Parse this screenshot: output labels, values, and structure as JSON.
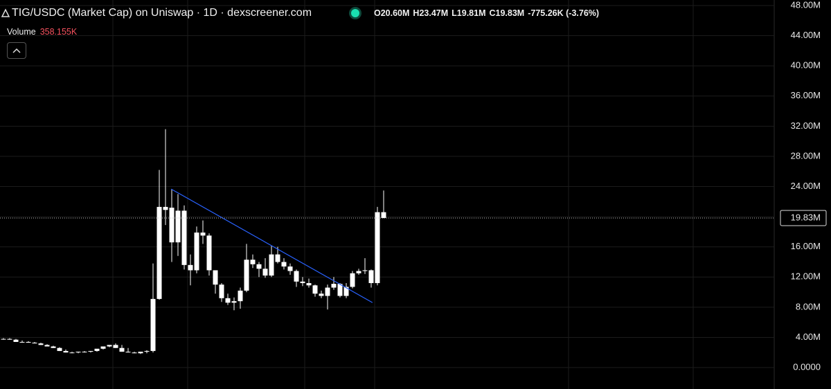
{
  "header": {
    "title": "TIG/USDC (Market Cap) on Uniswap · 1D · dexscreener.com",
    "readout": [
      "O20.60M",
      "H23.47M",
      "L19.81M",
      "C19.83M",
      "-775.26K (-3.76%)"
    ],
    "volume_label": "Volume",
    "volume_value": "358.155K"
  },
  "chart_data": {
    "type": "candlestick",
    "color": "#ffffff",
    "open": [
      3.8,
      3.8,
      3.7,
      3.4,
      3.4,
      3.3,
      3.2,
      3.0,
      2.8,
      2.6,
      2.2,
      2.0,
      2.0,
      2.1,
      2.1,
      2.2,
      2.5,
      2.8,
      3.0,
      2.6,
      2.1,
      2.0,
      1.9,
      2.1,
      2.2,
      9.1,
      21.3,
      21.2,
      16.6,
      20.8,
      13.6,
      12.9,
      17.9,
      17.5,
      12.9,
      11.0,
      9.2,
      8.6,
      8.8,
      10.2,
      14.3,
      13.7,
      13.1,
      12.2,
      15.0,
      14.0,
      13.4,
      12.8,
      11.4,
      11.2,
      10.9,
      9.8,
      9.5,
      10.6,
      11.1,
      9.5,
      10.7,
      12.5,
      12.8,
      12.9,
      11.2,
      20.6
    ],
    "high": [
      3.9,
      3.9,
      3.8,
      3.6,
      3.5,
      3.4,
      3.3,
      3.1,
      2.9,
      2.7,
      2.4,
      2.1,
      2.1,
      2.2,
      2.2,
      2.4,
      2.7,
      3.0,
      3.2,
      3.0,
      2.6,
      2.1,
      2.0,
      2.3,
      13.8,
      26.2,
      31.6,
      23.6,
      23.0,
      21.5,
      15.0,
      18.7,
      19.5,
      17.8,
      12.9,
      11.2,
      9.8,
      9.3,
      10.6,
      16.4,
      15.0,
      14.0,
      14.5,
      16.2,
      16.0,
      14.5,
      13.8,
      13.0,
      12.0,
      11.8,
      11.0,
      10.2,
      11.0,
      12.0,
      11.2,
      11.2,
      12.8,
      13.1,
      14.5,
      13.0,
      21.3,
      23.47
    ],
    "low": [
      3.7,
      3.7,
      3.6,
      3.3,
      3.3,
      3.2,
      3.0,
      2.8,
      2.6,
      2.2,
      2.0,
      1.9,
      1.9,
      2.0,
      2.0,
      2.1,
      2.4,
      2.7,
      2.6,
      2.1,
      2.0,
      1.9,
      1.8,
      1.9,
      2.0,
      9.0,
      18.9,
      14.0,
      14.8,
      13.0,
      10.9,
      12.5,
      16.4,
      12.2,
      9.8,
      8.7,
      8.3,
      7.6,
      7.8,
      10.0,
      13.2,
      12.0,
      11.9,
      12.0,
      13.8,
      13.0,
      12.3,
      10.7,
      10.8,
      10.6,
      9.4,
      9.2,
      7.7,
      10.3,
      9.3,
      9.2,
      10.5,
      12.3,
      12.4,
      10.6,
      10.9,
      19.81
    ],
    "close": [
      3.8,
      3.7,
      3.4,
      3.4,
      3.3,
      3.2,
      3.0,
      2.8,
      2.6,
      2.2,
      2.0,
      2.0,
      2.1,
      2.1,
      2.2,
      2.5,
      2.8,
      3.0,
      2.6,
      2.1,
      2.0,
      1.9,
      2.1,
      2.2,
      9.1,
      21.3,
      20.9,
      16.6,
      20.8,
      13.6,
      12.9,
      17.9,
      17.5,
      12.9,
      11.0,
      9.2,
      8.6,
      8.8,
      10.2,
      14.3,
      13.7,
      13.1,
      12.2,
      15.0,
      14.0,
      13.4,
      12.8,
      11.4,
      11.2,
      10.9,
      9.8,
      9.5,
      10.6,
      11.1,
      9.5,
      10.7,
      12.5,
      12.8,
      12.9,
      11.2,
      20.6,
      19.83
    ],
    "ylim": [
      -2.84,
      48.73
    ],
    "yticks": [
      {
        "value": 0,
        "label": "0.0000"
      },
      {
        "value": 4,
        "label": "4.00M"
      },
      {
        "value": 8,
        "label": "8.00M"
      },
      {
        "value": 12,
        "label": "12.00M"
      },
      {
        "value": 16,
        "label": "16.00M"
      },
      {
        "value": 20,
        "label": "20.00M"
      },
      {
        "value": 24,
        "label": "24.00M"
      },
      {
        "value": 28,
        "label": "28.00M"
      },
      {
        "value": 32,
        "label": "32.00M"
      },
      {
        "value": 36,
        "label": "36.00M"
      },
      {
        "value": 40,
        "label": "40.00M"
      },
      {
        "value": 44,
        "label": "44.00M"
      },
      {
        "value": 48,
        "label": "48.00M"
      }
    ],
    "grid": true,
    "last_price": {
      "value": 19.83,
      "label": "19.83M"
    },
    "trendline": {
      "x": [
        26.9,
        59.2
      ],
      "y": [
        23.67,
        8.62
      ],
      "color": "#2962ff"
    }
  }
}
